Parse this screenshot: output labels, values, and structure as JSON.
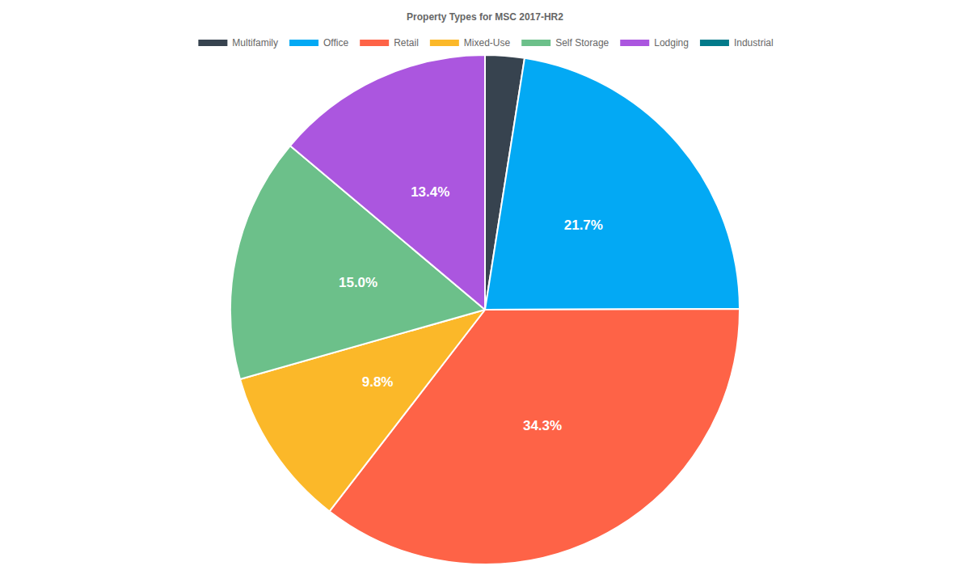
{
  "chart_data": {
    "type": "pie",
    "title": "Property Types for MSC 2017-HR2",
    "categories": [
      "Multifamily",
      "Office",
      "Retail",
      "Mixed-Use",
      "Self Storage",
      "Lodging",
      "Industrial"
    ],
    "values": [
      2.4,
      21.7,
      34.3,
      9.8,
      15.0,
      13.4,
      0
    ],
    "value_labels": [
      null,
      "21.7%",
      "34.3%",
      "9.8%",
      "15.0%",
      "13.4%",
      null
    ],
    "colors": [
      "#37434f",
      "#03a9f4",
      "#fe6347",
      "#fbb829",
      "#6cc08a",
      "#ab56df",
      "#027a8a"
    ],
    "data_labels": true,
    "legend": "top"
  }
}
